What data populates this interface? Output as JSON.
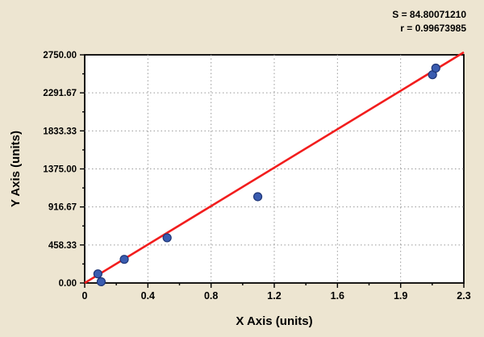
{
  "colors": {
    "background": "#ede5d1",
    "plot_background": "#ffffff",
    "plot_border": "#000000",
    "grid": "#999999",
    "fit_line": "#f21d1d",
    "dot_fill": "#3a5cb0",
    "dot_edge": "#1e3576",
    "text": "#000000"
  },
  "annotations": {
    "s_label": "S = 84.80071210",
    "r_label": "r = 0.99673985"
  },
  "chart_data": {
    "type": "scatter",
    "title": "",
    "xlabel": "X Axis (units)",
    "ylabel": "Y Axis (units)",
    "xlim": [
      0,
      2.3
    ],
    "ylim": [
      0,
      2750
    ],
    "x_tick_labels": [
      "0",
      "0.4",
      "0.8",
      "1.2",
      "1.6",
      "1.9",
      "2.3"
    ],
    "y_ticks": [
      0,
      458.33,
      916.67,
      1375.0,
      1833.33,
      2291.67,
      2750.0
    ],
    "y_tick_labels": [
      "0.00",
      "458.33",
      "916.67",
      "1375.00",
      "1833.33",
      "2291.67",
      "2750.00"
    ],
    "grid": true,
    "legend": "none",
    "points": [
      {
        "x": 0.08,
        "y": 110
      },
      {
        "x": 0.1,
        "y": 15
      },
      {
        "x": 0.24,
        "y": 285
      },
      {
        "x": 0.5,
        "y": 545
      },
      {
        "x": 1.05,
        "y": 1040
      },
      {
        "x": 2.11,
        "y": 2510
      },
      {
        "x": 2.13,
        "y": 2590
      }
    ],
    "fit_line": {
      "x1": 0,
      "y1": 0,
      "x2": 2.3,
      "y2": 2780
    }
  }
}
